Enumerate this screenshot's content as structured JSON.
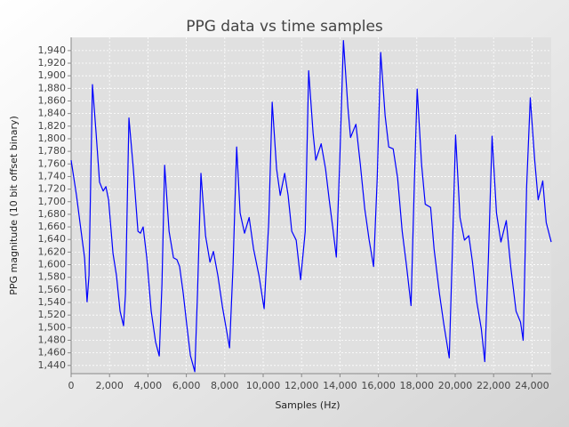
{
  "chart_data": {
    "type": "line",
    "title": "PPG data vs time samples",
    "x_label": "Samples (Hz)",
    "y_label": "PPG magnitude (10 bit offset binary)",
    "color": "#0000ff",
    "grid": true,
    "xlim": [
      0,
      25000
    ],
    "ylim": [
      1427,
      1961
    ],
    "xticks": [
      0,
      {
        "value": 2000,
        "label": "2,000"
      },
      {
        "value": 4000,
        "label": "4,000"
      },
      {
        "value": 6000,
        "label": "6,000"
      },
      {
        "value": 8000,
        "label": "8,000"
      },
      {
        "value": 10000,
        "label": "10,000"
      },
      {
        "value": 12000,
        "label": "12,000"
      },
      {
        "value": 14000,
        "label": "14,000"
      },
      {
        "value": 16000,
        "label": "16,000"
      },
      {
        "value": 18000,
        "label": "18,000"
      },
      {
        "value": 20000,
        "label": "20,000"
      },
      {
        "value": 22000,
        "label": "22,000"
      },
      {
        "value": 24000,
        "label": "24,000"
      }
    ],
    "yticks": [
      {
        "value": 1440,
        "label": "1,440"
      },
      {
        "value": 1460,
        "label": "1,460"
      },
      {
        "value": 1480,
        "label": "1,480"
      },
      {
        "value": 1500,
        "label": "1,500"
      },
      {
        "value": 1520,
        "label": "1,520"
      },
      {
        "value": 1540,
        "label": "1,540"
      },
      {
        "value": 1560,
        "label": "1,560"
      },
      {
        "value": 1580,
        "label": "1,580"
      },
      {
        "value": 1600,
        "label": "1,600"
      },
      {
        "value": 1620,
        "label": "1,620"
      },
      {
        "value": 1640,
        "label": "1,640"
      },
      {
        "value": 1660,
        "label": "1,660"
      },
      {
        "value": 1680,
        "label": "1,680"
      },
      {
        "value": 1700,
        "label": "1,700"
      },
      {
        "value": 1720,
        "label": "1,720"
      },
      {
        "value": 1740,
        "label": "1,740"
      },
      {
        "value": 1760,
        "label": "1,760"
      },
      {
        "value": 1780,
        "label": "1,780"
      },
      {
        "value": 1800,
        "label": "1,800"
      },
      {
        "value": 1820,
        "label": "1,820"
      },
      {
        "value": 1840,
        "label": "1,840"
      },
      {
        "value": 1860,
        "label": "1,860"
      },
      {
        "value": 1880,
        "label": "1,880"
      },
      {
        "value": 1900,
        "label": "1,900"
      },
      {
        "value": 1920,
        "label": "1,920"
      },
      {
        "value": 1940,
        "label": "1,940"
      }
    ],
    "x": [
      0,
      280,
      460,
      700,
      830,
      930,
      1110,
      1300,
      1480,
      1670,
      1810,
      1950,
      2180,
      2360,
      2550,
      2730,
      2830,
      3010,
      3240,
      3480,
      3610,
      3750,
      3940,
      4170,
      4400,
      4590,
      4730,
      4870,
      5100,
      5330,
      5510,
      5650,
      5840,
      6020,
      6210,
      6440,
      6580,
      6760,
      7000,
      7230,
      7410,
      7640,
      7880,
      8250,
      8430,
      8620,
      8800,
      9030,
      9270,
      9500,
      9780,
      10050,
      10290,
      10470,
      10700,
      10890,
      11120,
      11300,
      11490,
      11720,
      11950,
      12190,
      12370,
      12600,
      12740,
      13020,
      13250,
      13440,
      13620,
      13810,
      13990,
      14180,
      14410,
      14550,
      14830,
      15060,
      15290,
      15520,
      15750,
      15940,
      16120,
      16350,
      16540,
      16770,
      17000,
      17240,
      17470,
      17700,
      17880,
      18020,
      18250,
      18440,
      18720,
      18900,
      19180,
      19410,
      19690,
      19830,
      20020,
      20250,
      20480,
      20710,
      20900,
      21130,
      21360,
      21540,
      21730,
      21920,
      22150,
      22380,
      22660,
      22890,
      23170,
      23400,
      23540,
      23720,
      23910,
      24140,
      24320,
      24560,
      24740,
      25000
    ],
    "values": [
      1766,
      1710,
      1667,
      1611,
      1541,
      1583,
      1886,
      1809,
      1731,
      1717,
      1724,
      1703,
      1618,
      1583,
      1526,
      1503,
      1554,
      1833,
      1752,
      1653,
      1650,
      1660,
      1611,
      1526,
      1477,
      1455,
      1569,
      1758,
      1653,
      1611,
      1608,
      1597,
      1554,
      1505,
      1456,
      1430,
      1554,
      1745,
      1646,
      1604,
      1621,
      1583,
      1533,
      1468,
      1597,
      1787,
      1682,
      1650,
      1675,
      1625,
      1583,
      1530,
      1667,
      1858,
      1752,
      1710,
      1745,
      1710,
      1653,
      1639,
      1576,
      1653,
      1908,
      1809,
      1766,
      1792,
      1752,
      1703,
      1660,
      1612,
      1766,
      1956,
      1851,
      1802,
      1823,
      1759,
      1689,
      1639,
      1597,
      1738,
      1937,
      1837,
      1787,
      1784,
      1738,
      1653,
      1597,
      1535,
      1738,
      1879,
      1759,
      1696,
      1691,
      1625,
      1554,
      1505,
      1452,
      1597,
      1806,
      1675,
      1639,
      1646,
      1604,
      1540,
      1498,
      1446,
      1611,
      1804,
      1682,
      1636,
      1670,
      1597,
      1526,
      1509,
      1480,
      1724,
      1865,
      1766,
      1703,
      1733,
      1667,
      1636
    ]
  }
}
